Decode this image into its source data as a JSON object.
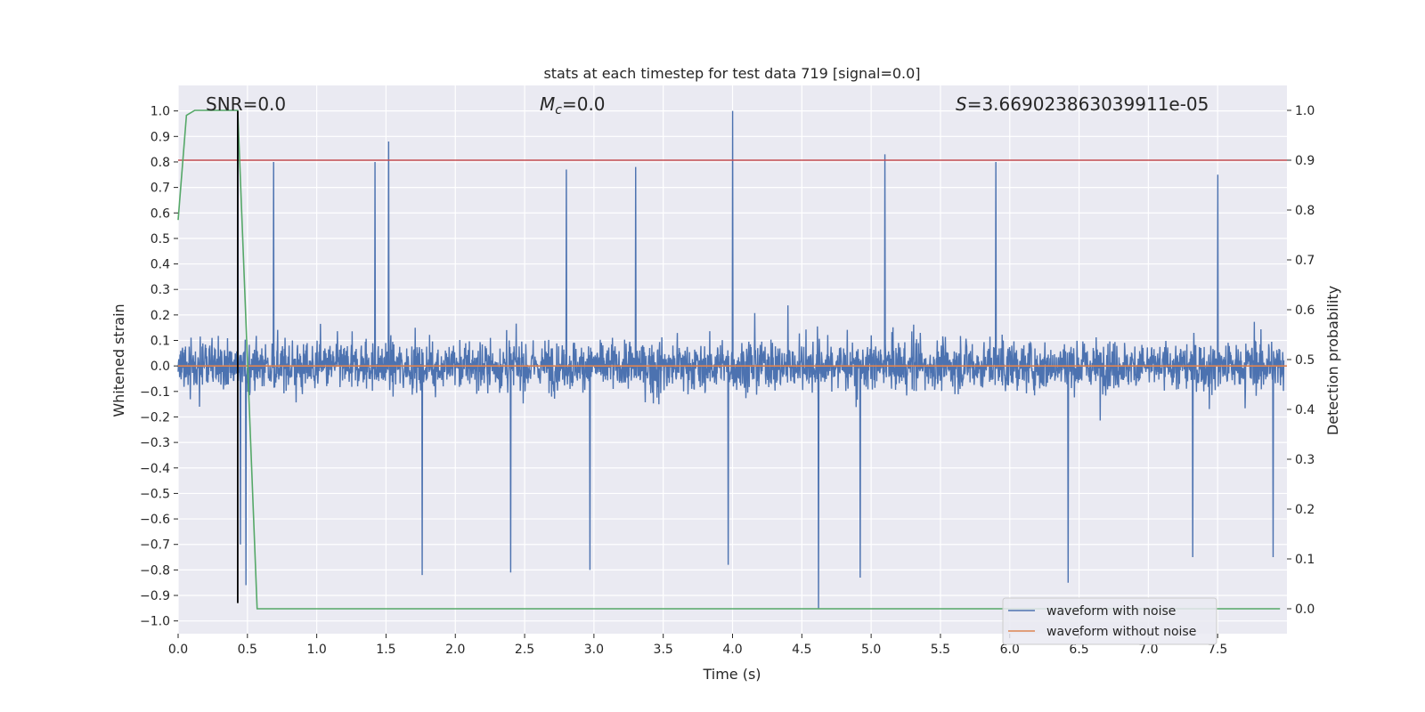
{
  "chart_data": {
    "type": "line",
    "title": "stats at each timestep for test data 719 [signal=0.0]",
    "xlabel": "Time (s)",
    "ylabel": "Whitened strain",
    "y2label": "Detection probability",
    "xlim": [
      0.0,
      8.0
    ],
    "ylim": [
      -1.05,
      1.1
    ],
    "y2lim": [
      -0.05,
      1.05
    ],
    "xticks": [
      "0.0",
      "0.5",
      "1.0",
      "1.5",
      "2.0",
      "2.5",
      "3.0",
      "3.5",
      "4.0",
      "4.5",
      "5.0",
      "5.5",
      "6.0",
      "6.5",
      "7.0",
      "7.5"
    ],
    "yticks": [
      "1.0",
      "0.9",
      "0.8",
      "0.7",
      "0.6",
      "0.5",
      "0.4",
      "0.3",
      "0.2",
      "0.1",
      "0.0",
      "−0.1",
      "−0.2",
      "−0.3",
      "−0.4",
      "−0.5",
      "−0.6",
      "−0.7",
      "−0.8",
      "−0.9",
      "−1.0"
    ],
    "y2ticks": [
      "1.0",
      "0.9",
      "0.8",
      "0.7",
      "0.6",
      "0.5",
      "0.4",
      "0.3",
      "0.2",
      "0.1",
      "0.0"
    ],
    "annotations": {
      "snr_name": "SNR",
      "snr_value": "=0.0",
      "mc_main": "M",
      "mc_sub": "c",
      "mc_value": "=0.0",
      "s_name": "S",
      "s_value": "=3.669023863039911e-05"
    },
    "series": [
      {
        "name": "waveform with noise",
        "color": "#4c72b0",
        "axis": "left",
        "description": "dense whitened noise, mostly within ±0.45, peaks reaching about 1.0 near t=4.0 and about -0.95 near t=4.62"
      },
      {
        "name": "waveform without noise",
        "color": "#dd8452",
        "axis": "left",
        "values_constant": 0.0
      },
      {
        "name": "detection probability",
        "color": "#55a868",
        "axis": "right",
        "x": [
          0.0,
          0.06,
          0.12,
          0.43,
          0.57,
          7.95
        ],
        "values": [
          0.78,
          0.99,
          1.0,
          1.0,
          0.0,
          0.0
        ]
      },
      {
        "name": "threshold",
        "color": "#c44e52",
        "axis": "right",
        "values_constant": 0.9
      },
      {
        "name": "event marker",
        "color": "#000000",
        "axis": "left",
        "x_value": 0.43,
        "y_range": [
          -0.93,
          1.0
        ]
      }
    ],
    "peaks": [
      {
        "t": 0.43,
        "v": 0.98
      },
      {
        "t": 0.69,
        "v": 0.8
      },
      {
        "t": 1.42,
        "v": 0.8
      },
      {
        "t": 1.52,
        "v": 0.88
      },
      {
        "t": 2.8,
        "v": 0.77
      },
      {
        "t": 3.3,
        "v": 0.78
      },
      {
        "t": 4.0,
        "v": 1.0
      },
      {
        "t": 5.1,
        "v": 0.83
      },
      {
        "t": 5.9,
        "v": 0.8
      },
      {
        "t": 7.5,
        "v": 0.75
      },
      {
        "t": 0.45,
        "v": -0.7
      },
      {
        "t": 0.49,
        "v": -0.86
      },
      {
        "t": 1.76,
        "v": -0.82
      },
      {
        "t": 2.4,
        "v": -0.81
      },
      {
        "t": 2.97,
        "v": -0.8
      },
      {
        "t": 3.97,
        "v": -0.78
      },
      {
        "t": 4.62,
        "v": -0.95
      },
      {
        "t": 4.92,
        "v": -0.83
      },
      {
        "t": 6.42,
        "v": -0.85
      },
      {
        "t": 7.32,
        "v": -0.75
      },
      {
        "t": 7.9,
        "v": -0.75
      }
    ],
    "legend": {
      "position": "lower-right",
      "entries": [
        {
          "label": "waveform with noise",
          "color": "#4c72b0"
        },
        {
          "label": "waveform without noise",
          "color": "#dd8452"
        }
      ]
    },
    "grid": true,
    "background": "#eaeaf2"
  }
}
